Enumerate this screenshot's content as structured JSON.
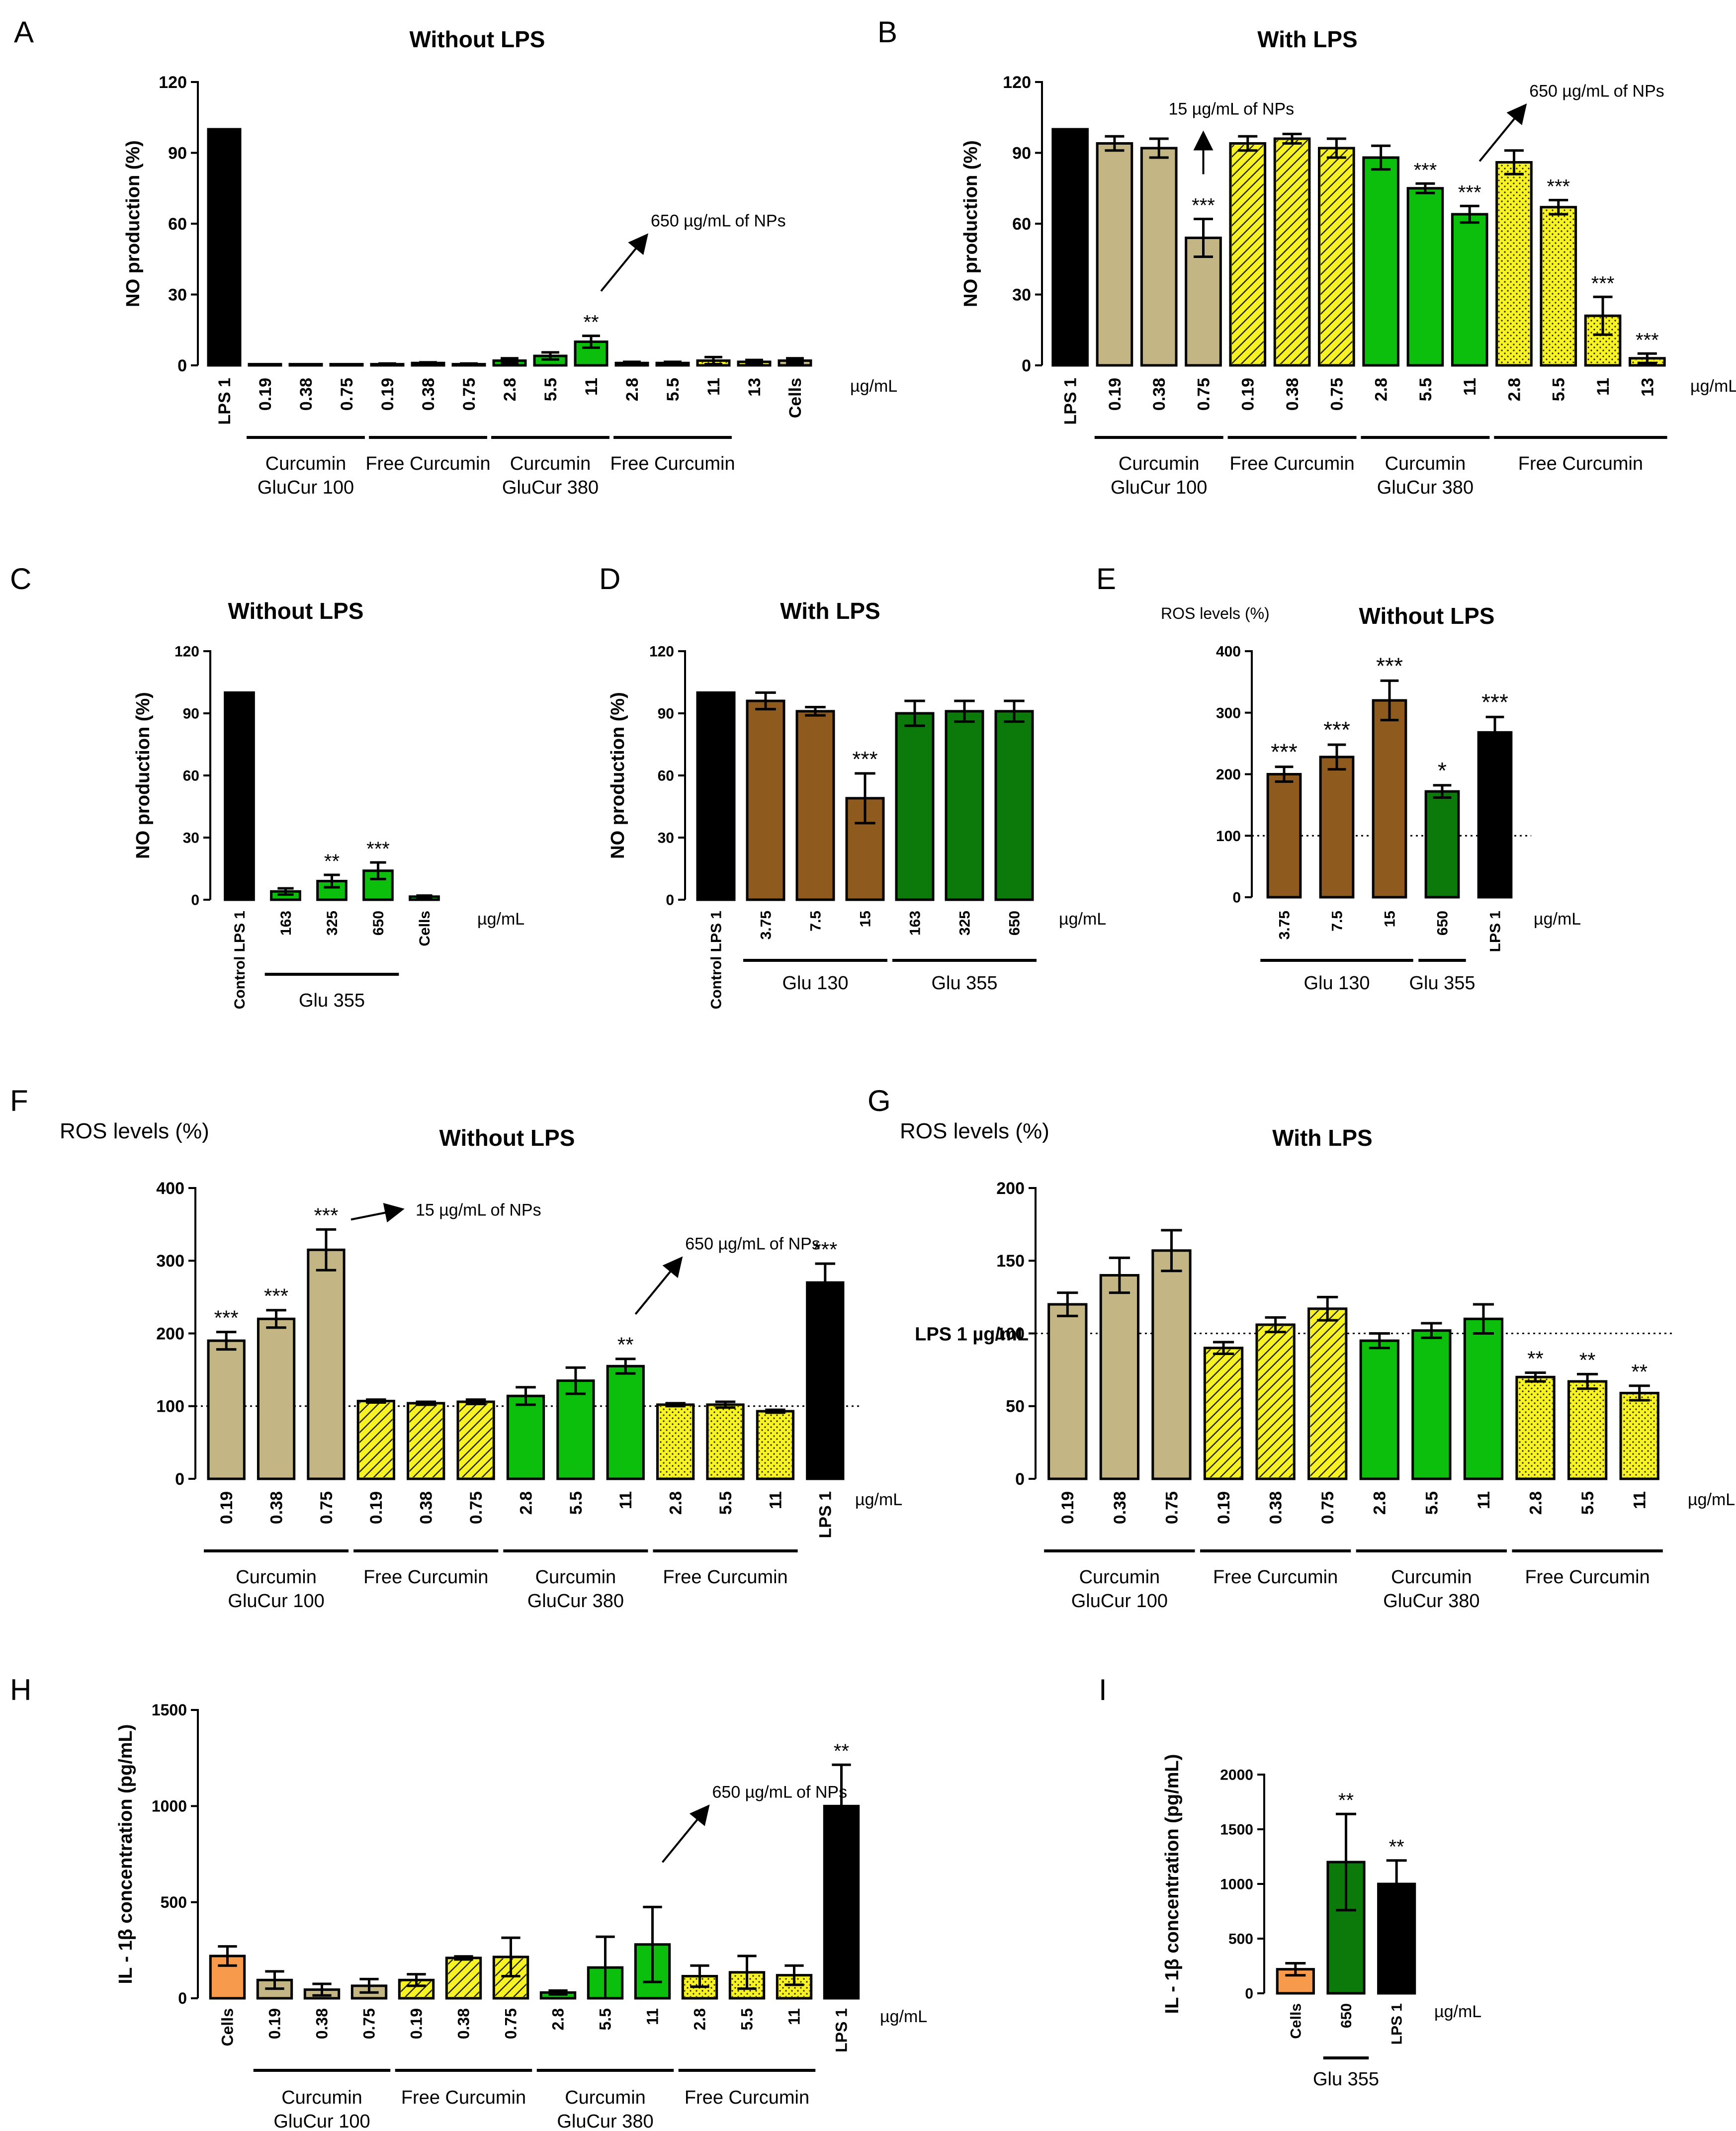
{
  "figure": {
    "unit": "µg/mL"
  },
  "colors": {
    "black": "#000000",
    "tan": "#c4b585",
    "green": "#0cbf0c",
    "darkgreen": "#0b7a0b",
    "yellow": "#f6f223",
    "brown": "#8f5a1e",
    "orange": "#f79a4c"
  },
  "chart_data": [
    {
      "panel": "A",
      "type": "bar",
      "title": "Without LPS",
      "ylabel": "NO production (%)",
      "ylim": [
        0,
        120
      ],
      "yticks": [
        0,
        30,
        60,
        90,
        120
      ],
      "unit_label": "µg/mL",
      "categories": [
        "LPS 1",
        "0.19",
        "0.38",
        "0.75",
        "0.19",
        "0.38",
        "0.75",
        "2.8",
        "5.5",
        "11",
        "2.8",
        "5.5",
        "11",
        "13",
        "Cells"
      ],
      "values": [
        100,
        0.5,
        0.5,
        0.5,
        0.5,
        1,
        0.5,
        2,
        4,
        10,
        1,
        1,
        2,
        1.5,
        2
      ],
      "errors": [
        0,
        0,
        0,
        0,
        0.3,
        0.3,
        0.3,
        1,
        1.5,
        2.5,
        0.5,
        0.5,
        1.5,
        0.8,
        1
      ],
      "fills": [
        "black",
        "tan",
        "tan",
        "tan",
        "tan",
        "tan",
        "tan",
        "green",
        "green",
        "green",
        "yellow",
        "yellow",
        "yellow",
        "yellow",
        "tan"
      ],
      "patterns": [
        "",
        "",
        "",
        "",
        "hatch",
        "hatch",
        "hatch",
        "",
        "",
        "",
        "dots",
        "dots",
        "dots",
        "dots",
        ""
      ],
      "significance": [
        "",
        "",
        "",
        "",
        "",
        "",
        "",
        "",
        "",
        "**",
        "",
        "",
        "",
        "",
        ""
      ],
      "groups": [
        {
          "label": "Curcumin\nGluCur 100",
          "start": 1,
          "end": 3
        },
        {
          "label": "Free Curcumin",
          "start": 4,
          "end": 6
        },
        {
          "label": "Curcumin\nGluCur 380",
          "start": 7,
          "end": 9
        },
        {
          "label": "Free Curcumin",
          "start": 10,
          "end": 12
        }
      ],
      "annotations": [
        {
          "text": "650 µg/mL of NPs",
          "bar": 9
        }
      ]
    },
    {
      "panel": "B",
      "type": "bar",
      "title": "With LPS",
      "ylabel": "NO production (%)",
      "ylim": [
        0,
        120
      ],
      "yticks": [
        0,
        30,
        60,
        90,
        120
      ],
      "unit_label": "µg/mL",
      "categories": [
        "LPS 1",
        "0.19",
        "0.38",
        "0.75",
        "0.19",
        "0.38",
        "0.75",
        "2.8",
        "5.5",
        "11",
        "2.8",
        "5.5",
        "11",
        "13"
      ],
      "values": [
        100,
        94,
        92,
        54,
        94,
        96,
        92,
        88,
        75,
        64,
        86,
        67,
        21,
        3
      ],
      "errors": [
        0,
        3,
        4,
        8,
        3,
        2,
        4,
        5,
        2,
        3.5,
        5,
        3,
        8,
        2
      ],
      "fills": [
        "black",
        "tan",
        "tan",
        "tan",
        "yellow",
        "yellow",
        "yellow",
        "green",
        "green",
        "green",
        "yellow",
        "yellow",
        "yellow",
        "yellow"
      ],
      "patterns": [
        "",
        "",
        "",
        "",
        "hatch",
        "hatch",
        "hatch",
        "",
        "",
        "",
        "dots",
        "dots",
        "dots",
        "dots"
      ],
      "significance": [
        "",
        "",
        "",
        "***",
        "",
        "",
        "",
        "",
        "***",
        "***",
        "",
        "***",
        "***",
        "***"
      ],
      "groups": [
        {
          "label": "Curcumin\nGluCur 100",
          "start": 1,
          "end": 3
        },
        {
          "label": "Free Curcumin",
          "start": 4,
          "end": 6
        },
        {
          "label": "Curcumin\nGluCur 380",
          "start": 7,
          "end": 9
        },
        {
          "label": "Free Curcumin",
          "start": 10,
          "end": 13
        }
      ],
      "annotations": [
        {
          "text": "15 µg/mL of NPs",
          "bar": 3
        },
        {
          "text": "650 µg/mL of NPs",
          "bar": 9
        }
      ]
    },
    {
      "panel": "C",
      "type": "bar",
      "title": "Without LPS",
      "ylabel": "NO production (%)",
      "ylim": [
        0,
        120
      ],
      "yticks": [
        0,
        30,
        60,
        90,
        120
      ],
      "unit_label": "µg/mL",
      "categories": [
        "Control LPS 1",
        "163",
        "325",
        "650",
        "Cells"
      ],
      "values": [
        100,
        4,
        9,
        14,
        1.5
      ],
      "errors": [
        0,
        1.5,
        3,
        4,
        0.5
      ],
      "fills": [
        "black",
        "green",
        "green",
        "green",
        "green"
      ],
      "patterns": [
        "",
        "",
        "",
        "",
        ""
      ],
      "significance": [
        "",
        "",
        "**",
        "***",
        ""
      ],
      "groups": [
        {
          "label": "Glu 355",
          "start": 1,
          "end": 3
        }
      ],
      "annotations": []
    },
    {
      "panel": "D",
      "type": "bar",
      "title": "With LPS",
      "ylabel": "NO production (%)",
      "ylim": [
        0,
        120
      ],
      "yticks": [
        0,
        30,
        60,
        90,
        120
      ],
      "unit_label": "µg/mL",
      "categories": [
        "Control LPS 1",
        "3.75",
        "7.5",
        "15",
        "163",
        "325",
        "650"
      ],
      "values": [
        100,
        96,
        91,
        49,
        90,
        91,
        91
      ],
      "errors": [
        0,
        4,
        2,
        12,
        6,
        5,
        5
      ],
      "fills": [
        "black",
        "brown",
        "brown",
        "brown",
        "darkgreen",
        "darkgreen",
        "darkgreen"
      ],
      "patterns": [
        "",
        "",
        "",
        "",
        "",
        "",
        ""
      ],
      "significance": [
        "",
        "",
        "",
        "***",
        "",
        "",
        ""
      ],
      "groups": [
        {
          "label": "Glu 130",
          "start": 1,
          "end": 3
        },
        {
          "label": "Glu 355",
          "start": 4,
          "end": 6
        }
      ],
      "annotations": []
    },
    {
      "panel": "E",
      "type": "bar",
      "title": "Without LPS",
      "ylabel": "ROS levels (%)",
      "ylim": [
        0,
        400
      ],
      "yticks": [
        0,
        100,
        200,
        300,
        400
      ],
      "unit_label": "µg/mL",
      "categories": [
        "3.75",
        "7.5",
        "15",
        "650",
        "LPS 1"
      ],
      "values": [
        200,
        228,
        320,
        172,
        268
      ],
      "errors": [
        12,
        20,
        32,
        10,
        25
      ],
      "fills": [
        "brown",
        "brown",
        "brown",
        "darkgreen",
        "black"
      ],
      "patterns": [
        "",
        "",
        "",
        "",
        ""
      ],
      "significance": [
        "***",
        "***",
        "***",
        "*",
        "***"
      ],
      "groups": [
        {
          "label": "Glu 130",
          "start": 0,
          "end": 2
        },
        {
          "label": "Glu 355",
          "start": 3,
          "end": 3
        }
      ],
      "reference": {
        "value": 100,
        "label": ""
      },
      "annotations": []
    },
    {
      "panel": "F",
      "type": "bar",
      "title": "Without LPS",
      "ylabel": "ROS levels (%)",
      "ylim": [
        0,
        400
      ],
      "yticks": [
        0,
        100,
        200,
        300,
        400
      ],
      "unit_label": "µg/mL",
      "categories": [
        "0.19",
        "0.38",
        "0.75",
        "0.19",
        "0.38",
        "0.75",
        "2.8",
        "5.5",
        "11",
        "2.8",
        "5.5",
        "11",
        "LPS 1"
      ],
      "values": [
        190,
        220,
        315,
        107,
        104,
        106,
        114,
        135,
        155,
        102,
        102,
        93,
        270
      ],
      "errors": [
        12,
        12,
        28,
        2,
        2,
        3,
        12,
        18,
        10,
        2,
        4,
        2,
        26
      ],
      "fills": [
        "tan",
        "tan",
        "tan",
        "yellow",
        "yellow",
        "yellow",
        "green",
        "green",
        "green",
        "yellow",
        "yellow",
        "yellow",
        "black"
      ],
      "patterns": [
        "",
        "",
        "",
        "hatch",
        "hatch",
        "hatch",
        "",
        "",
        "",
        "dots",
        "dots",
        "dots",
        ""
      ],
      "significance": [
        "***",
        "***",
        "***",
        "",
        "",
        "",
        "",
        "",
        "**",
        "",
        "",
        "",
        "***"
      ],
      "groups": [
        {
          "label": "Curcumin\nGluCur 100",
          "start": 0,
          "end": 2
        },
        {
          "label": "Free Curcumin",
          "start": 3,
          "end": 5
        },
        {
          "label": "Curcumin\nGluCur 380",
          "start": 6,
          "end": 8
        },
        {
          "label": "Free Curcumin",
          "start": 9,
          "end": 11
        }
      ],
      "reference": {
        "value": 100,
        "label": ""
      },
      "annotations": [
        {
          "text": "15 µg/mL of NPs",
          "bar": 2
        },
        {
          "text": "650 µg/mL of NPs",
          "bar": 8
        }
      ]
    },
    {
      "panel": "G",
      "type": "bar",
      "title": "With LPS",
      "ylabel": "ROS levels (%)",
      "ylim": [
        0,
        200
      ],
      "yticks": [
        0,
        50,
        100,
        150,
        200
      ],
      "unit_label": "µg/mL",
      "categories": [
        "0.19",
        "0.38",
        "0.75",
        "0.19",
        "0.38",
        "0.75",
        "2.8",
        "5.5",
        "11",
        "2.8",
        "5.5",
        "11"
      ],
      "values": [
        120,
        140,
        157,
        90,
        106,
        117,
        95,
        102,
        110,
        70,
        67,
        59
      ],
      "errors": [
        8,
        12,
        14,
        4,
        5,
        8,
        5,
        5,
        10,
        3,
        5,
        5
      ],
      "fills": [
        "tan",
        "tan",
        "tan",
        "yellow",
        "yellow",
        "yellow",
        "green",
        "green",
        "green",
        "yellow",
        "yellow",
        "yellow"
      ],
      "patterns": [
        "",
        "",
        "",
        "hatch",
        "hatch",
        "hatch",
        "",
        "",
        "",
        "dots",
        "dots",
        "dots"
      ],
      "significance": [
        "",
        "",
        "",
        "",
        "",
        "",
        "",
        "",
        "",
        "**",
        "**",
        "**"
      ],
      "groups": [
        {
          "label": "Curcumin\nGluCur 100",
          "start": 0,
          "end": 2
        },
        {
          "label": "Free Curcumin",
          "start": 3,
          "end": 5
        },
        {
          "label": "Curcumin\nGluCur 380",
          "start": 6,
          "end": 8
        },
        {
          "label": "Free Curcumin",
          "start": 9,
          "end": 11
        }
      ],
      "reference": {
        "value": 100,
        "label": "LPS 1 µg/mL"
      },
      "annotations": []
    },
    {
      "panel": "H",
      "type": "bar",
      "title": "",
      "ylabel": "IL - 1β concentration (pg/mL)",
      "ylim": [
        0,
        1500
      ],
      "yticks": [
        0,
        500,
        1000,
        1500
      ],
      "unit_label": "µg/mL",
      "categories": [
        "Cells",
        "0.19",
        "0.38",
        "0.75",
        "0.19",
        "0.38",
        "0.75",
        "2.8",
        "5.5",
        "11",
        "2.8",
        "5.5",
        "11",
        "LPS 1"
      ],
      "values": [
        220,
        95,
        45,
        65,
        95,
        210,
        215,
        30,
        160,
        280,
        115,
        135,
        120,
        1000
      ],
      "errors": [
        50,
        45,
        30,
        35,
        30,
        8,
        100,
        10,
        160,
        195,
        55,
        85,
        50,
        215
      ],
      "fills": [
        "orange",
        "tan",
        "tan",
        "tan",
        "yellow",
        "yellow",
        "yellow",
        "green",
        "green",
        "green",
        "yellow",
        "yellow",
        "yellow",
        "black"
      ],
      "patterns": [
        "",
        "",
        "",
        "",
        "hatch",
        "hatch",
        "hatch",
        "",
        "",
        "",
        "dots",
        "dots",
        "dots",
        ""
      ],
      "significance": [
        "",
        "",
        "",
        "",
        "",
        "",
        "",
        "",
        "",
        "",
        "",
        "",
        "",
        "**"
      ],
      "groups": [
        {
          "label": "Curcumin\nGluCur 100",
          "start": 1,
          "end": 3
        },
        {
          "label": "Free Curcumin",
          "start": 4,
          "end": 6
        },
        {
          "label": "Curcumin\nGluCur 380",
          "start": 7,
          "end": 9
        },
        {
          "label": "Free Curcumin",
          "start": 10,
          "end": 12
        }
      ],
      "annotations": [
        {
          "text": "650 µg/mL of NPs",
          "bar": 9
        }
      ]
    },
    {
      "panel": "I",
      "type": "bar",
      "title": "",
      "ylabel": "IL - 1β concentration (pg/mL)",
      "ylim": [
        0,
        2000
      ],
      "yticks": [
        0,
        500,
        1000,
        1500,
        2000
      ],
      "unit_label": "µg/mL",
      "categories": [
        "Cells",
        "650",
        "LPS 1"
      ],
      "values": [
        220,
        1200,
        1000
      ],
      "errors": [
        55,
        440,
        215
      ],
      "fills": [
        "orange",
        "darkgreen",
        "black"
      ],
      "patterns": [
        "",
        "",
        ""
      ],
      "significance": [
        "",
        "**",
        "**"
      ],
      "groups": [
        {
          "label": "Glu 355",
          "start": 1,
          "end": 1
        }
      ],
      "annotations": []
    }
  ]
}
